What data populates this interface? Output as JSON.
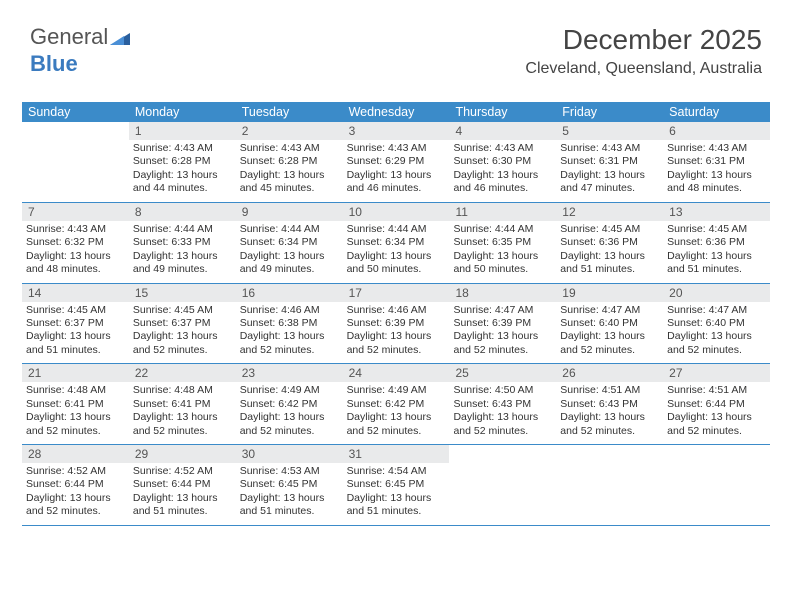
{
  "logo": {
    "part1": "General",
    "part2": "Blue"
  },
  "header": {
    "title": "December 2025",
    "location": "Cleveland, Queensland, Australia"
  },
  "colors": {
    "header_bg": "#3b8bc9",
    "header_text": "#ffffff",
    "daynum_bg": "#e9eaeb",
    "row_border": "#3b8bc9",
    "logo_blue": "#3b7bbf",
    "title_color": "#444444",
    "body_text": "#333333"
  },
  "fonts": {
    "title_size": 28,
    "location_size": 16,
    "header_cell_size": 12.5,
    "day_num_size": 12,
    "day_body_size": 10.5
  },
  "calendar": {
    "type": "table",
    "day_headers": [
      "Sunday",
      "Monday",
      "Tuesday",
      "Wednesday",
      "Thursday",
      "Friday",
      "Saturday"
    ],
    "weeks": [
      [
        {
          "n": "",
          "sr": "",
          "ss": "",
          "dl": ""
        },
        {
          "n": "1",
          "sr": "Sunrise: 4:43 AM",
          "ss": "Sunset: 6:28 PM",
          "dl": "Daylight: 13 hours and 44 minutes."
        },
        {
          "n": "2",
          "sr": "Sunrise: 4:43 AM",
          "ss": "Sunset: 6:28 PM",
          "dl": "Daylight: 13 hours and 45 minutes."
        },
        {
          "n": "3",
          "sr": "Sunrise: 4:43 AM",
          "ss": "Sunset: 6:29 PM",
          "dl": "Daylight: 13 hours and 46 minutes."
        },
        {
          "n": "4",
          "sr": "Sunrise: 4:43 AM",
          "ss": "Sunset: 6:30 PM",
          "dl": "Daylight: 13 hours and 46 minutes."
        },
        {
          "n": "5",
          "sr": "Sunrise: 4:43 AM",
          "ss": "Sunset: 6:31 PM",
          "dl": "Daylight: 13 hours and 47 minutes."
        },
        {
          "n": "6",
          "sr": "Sunrise: 4:43 AM",
          "ss": "Sunset: 6:31 PM",
          "dl": "Daylight: 13 hours and 48 minutes."
        }
      ],
      [
        {
          "n": "7",
          "sr": "Sunrise: 4:43 AM",
          "ss": "Sunset: 6:32 PM",
          "dl": "Daylight: 13 hours and 48 minutes."
        },
        {
          "n": "8",
          "sr": "Sunrise: 4:44 AM",
          "ss": "Sunset: 6:33 PM",
          "dl": "Daylight: 13 hours and 49 minutes."
        },
        {
          "n": "9",
          "sr": "Sunrise: 4:44 AM",
          "ss": "Sunset: 6:34 PM",
          "dl": "Daylight: 13 hours and 49 minutes."
        },
        {
          "n": "10",
          "sr": "Sunrise: 4:44 AM",
          "ss": "Sunset: 6:34 PM",
          "dl": "Daylight: 13 hours and 50 minutes."
        },
        {
          "n": "11",
          "sr": "Sunrise: 4:44 AM",
          "ss": "Sunset: 6:35 PM",
          "dl": "Daylight: 13 hours and 50 minutes."
        },
        {
          "n": "12",
          "sr": "Sunrise: 4:45 AM",
          "ss": "Sunset: 6:36 PM",
          "dl": "Daylight: 13 hours and 51 minutes."
        },
        {
          "n": "13",
          "sr": "Sunrise: 4:45 AM",
          "ss": "Sunset: 6:36 PM",
          "dl": "Daylight: 13 hours and 51 minutes."
        }
      ],
      [
        {
          "n": "14",
          "sr": "Sunrise: 4:45 AM",
          "ss": "Sunset: 6:37 PM",
          "dl": "Daylight: 13 hours and 51 minutes."
        },
        {
          "n": "15",
          "sr": "Sunrise: 4:45 AM",
          "ss": "Sunset: 6:37 PM",
          "dl": "Daylight: 13 hours and 52 minutes."
        },
        {
          "n": "16",
          "sr": "Sunrise: 4:46 AM",
          "ss": "Sunset: 6:38 PM",
          "dl": "Daylight: 13 hours and 52 minutes."
        },
        {
          "n": "17",
          "sr": "Sunrise: 4:46 AM",
          "ss": "Sunset: 6:39 PM",
          "dl": "Daylight: 13 hours and 52 minutes."
        },
        {
          "n": "18",
          "sr": "Sunrise: 4:47 AM",
          "ss": "Sunset: 6:39 PM",
          "dl": "Daylight: 13 hours and 52 minutes."
        },
        {
          "n": "19",
          "sr": "Sunrise: 4:47 AM",
          "ss": "Sunset: 6:40 PM",
          "dl": "Daylight: 13 hours and 52 minutes."
        },
        {
          "n": "20",
          "sr": "Sunrise: 4:47 AM",
          "ss": "Sunset: 6:40 PM",
          "dl": "Daylight: 13 hours and 52 minutes."
        }
      ],
      [
        {
          "n": "21",
          "sr": "Sunrise: 4:48 AM",
          "ss": "Sunset: 6:41 PM",
          "dl": "Daylight: 13 hours and 52 minutes."
        },
        {
          "n": "22",
          "sr": "Sunrise: 4:48 AM",
          "ss": "Sunset: 6:41 PM",
          "dl": "Daylight: 13 hours and 52 minutes."
        },
        {
          "n": "23",
          "sr": "Sunrise: 4:49 AM",
          "ss": "Sunset: 6:42 PM",
          "dl": "Daylight: 13 hours and 52 minutes."
        },
        {
          "n": "24",
          "sr": "Sunrise: 4:49 AM",
          "ss": "Sunset: 6:42 PM",
          "dl": "Daylight: 13 hours and 52 minutes."
        },
        {
          "n": "25",
          "sr": "Sunrise: 4:50 AM",
          "ss": "Sunset: 6:43 PM",
          "dl": "Daylight: 13 hours and 52 minutes."
        },
        {
          "n": "26",
          "sr": "Sunrise: 4:51 AM",
          "ss": "Sunset: 6:43 PM",
          "dl": "Daylight: 13 hours and 52 minutes."
        },
        {
          "n": "27",
          "sr": "Sunrise: 4:51 AM",
          "ss": "Sunset: 6:44 PM",
          "dl": "Daylight: 13 hours and 52 minutes."
        }
      ],
      [
        {
          "n": "28",
          "sr": "Sunrise: 4:52 AM",
          "ss": "Sunset: 6:44 PM",
          "dl": "Daylight: 13 hours and 52 minutes."
        },
        {
          "n": "29",
          "sr": "Sunrise: 4:52 AM",
          "ss": "Sunset: 6:44 PM",
          "dl": "Daylight: 13 hours and 51 minutes."
        },
        {
          "n": "30",
          "sr": "Sunrise: 4:53 AM",
          "ss": "Sunset: 6:45 PM",
          "dl": "Daylight: 13 hours and 51 minutes."
        },
        {
          "n": "31",
          "sr": "Sunrise: 4:54 AM",
          "ss": "Sunset: 6:45 PM",
          "dl": "Daylight: 13 hours and 51 minutes."
        },
        {
          "n": "",
          "sr": "",
          "ss": "",
          "dl": ""
        },
        {
          "n": "",
          "sr": "",
          "ss": "",
          "dl": ""
        },
        {
          "n": "",
          "sr": "",
          "ss": "",
          "dl": ""
        }
      ]
    ]
  }
}
